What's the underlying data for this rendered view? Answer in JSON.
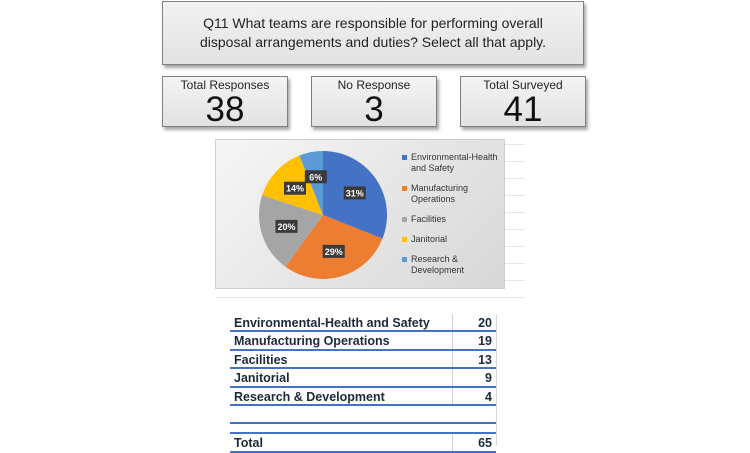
{
  "question": "Q11 What teams are responsible for performing overall disposal arrangements and duties?  Select all that apply.",
  "stats": {
    "total_label": "Total Responses",
    "total_value": "38",
    "none_label": "No Response",
    "none_value": "3",
    "surveyed_label": "Total Surveyed",
    "surveyed_value": "41"
  },
  "chart_data": {
    "type": "pie",
    "categories": [
      "Environmental-Health and Safety",
      "Manufacturing Operations",
      "Facilities",
      "Janitorial",
      "Research & Development"
    ],
    "values": [
      31,
      29,
      20,
      14,
      6
    ],
    "labels": [
      "31%",
      "29%",
      "20%",
      "14%",
      "6%"
    ],
    "colors": [
      "#4472c4",
      "#ed7d31",
      "#a5a5a5",
      "#ffc000",
      "#5b9bd5"
    ],
    "legend": [
      "Environmental-Health and Safety",
      "Manufacturing Operations",
      "Facilities",
      "Janitorial",
      "Research & Development"
    ],
    "legend_position": "right"
  },
  "table": {
    "rows": [
      {
        "name": "Environmental-Health and Safety",
        "value": "20"
      },
      {
        "name": "Manufacturing Operations",
        "value": "19"
      },
      {
        "name": "Facilities",
        "value": "13"
      },
      {
        "name": "Janitorial",
        "value": "9"
      },
      {
        "name": "Research & Development",
        "value": "4"
      }
    ],
    "total_label": "Total",
    "total_value": "65"
  }
}
